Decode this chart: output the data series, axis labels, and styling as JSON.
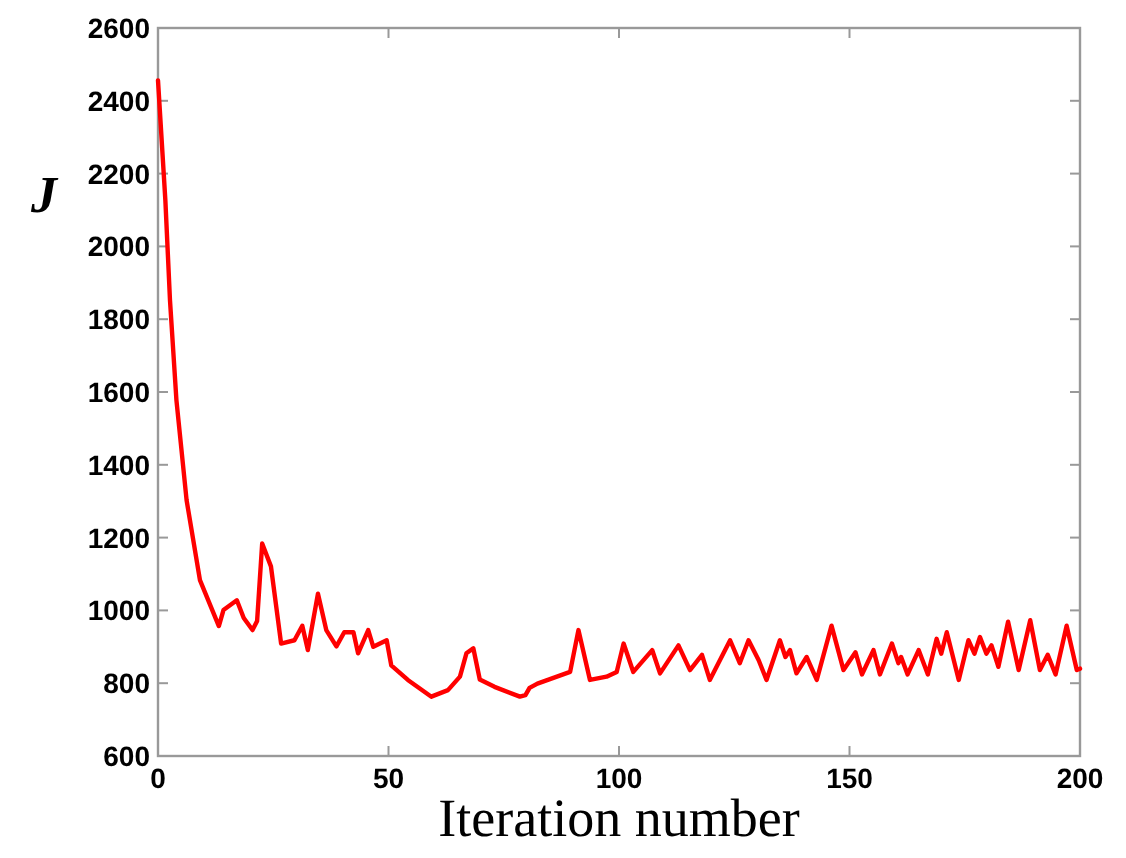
{
  "chart_data": {
    "type": "line",
    "xlabel": "Iteration number",
    "ylabel": "J",
    "xlim": [
      0,
      200
    ],
    "ylim": [
      600,
      2600
    ],
    "xticks": [
      0,
      50,
      100,
      150,
      200
    ],
    "yticks": [
      600,
      800,
      1000,
      1200,
      1400,
      1600,
      1800,
      2000,
      2200,
      2400,
      2600
    ],
    "grid": false,
    "line_style": "solid",
    "series": [
      {
        "color": "#ff0000",
        "x": [
          0,
          1.6,
          2.6,
          4,
          6.2,
          9.1,
          13.2,
          14.2,
          17.1,
          18.6,
          20.5,
          21.5,
          22.6,
          24.5,
          26.7,
          29.6,
          31.3,
          32.5,
          34.7,
          36.5,
          38.7,
          40.4,
          42.4,
          43.4,
          45.6,
          46.7,
          49.6,
          50.6,
          54.2,
          59.3,
          62.9,
          65.5,
          66.9,
          68.4,
          69.8,
          73,
          78.5,
          79.7,
          80.6,
          82.3,
          89.4,
          91.2,
          93.7,
          97.3,
          99.5,
          101,
          103.1,
          107.2,
          108.9,
          112.9,
          115.4,
          118,
          119.7,
          124.1,
          126.2,
          128.1,
          130.3,
          132,
          134.9,
          136.1,
          137.1,
          138.5,
          140.7,
          142.9,
          146.1,
          148.7,
          151.3,
          152.7,
          155.2,
          156.6,
          159.2,
          160.6,
          161.2,
          162.6,
          165,
          167,
          168.9,
          169.9,
          171.1,
          173.7,
          175.8,
          177.1,
          178.3,
          179.7,
          180.8,
          182.3,
          184.4,
          186.7,
          189.2,
          191.3,
          193,
          194.7,
          197.1,
          199.3,
          200
        ],
        "values": [
          2456,
          2126,
          1852,
          1577,
          1303,
          1083,
          957,
          1001,
          1028,
          979,
          946,
          971,
          1184,
          1121,
          909,
          918,
          958,
          891,
          1046,
          946,
          901,
          940,
          940,
          882,
          946,
          900,
          918,
          849,
          809,
          763,
          781,
          818,
          882,
          896,
          810,
          790,
          763,
          767,
          787,
          799,
          831,
          946,
          809,
          818,
          831,
          909,
          831,
          891,
          827,
          904,
          836,
          878,
          809,
          918,
          855,
          918,
          863,
          809,
          918,
          872,
          891,
          827,
          872,
          809,
          958,
          836,
          885,
          824,
          891,
          824,
          909,
          855,
          872,
          824,
          891,
          824,
          922,
          881,
          940,
          809,
          918,
          881,
          927,
          881,
          904,
          845,
          969,
          836,
          973,
          836,
          878,
          824,
          958,
          836,
          840
        ]
      }
    ]
  }
}
